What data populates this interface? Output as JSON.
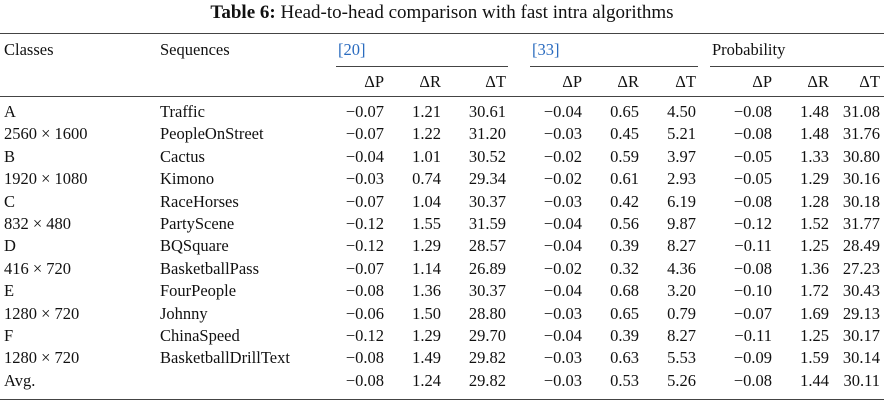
{
  "caption": {
    "label": "Table 6:",
    "text": "Head-to-head comparison with fast intra algorithms"
  },
  "header": {
    "classes": "Classes",
    "sequences": "Sequences",
    "group1": "[20]",
    "group2": "[33]",
    "group3": "Probability",
    "sub": [
      "ΔP",
      "ΔR",
      "ΔT",
      "ΔP",
      "ΔR",
      "ΔT",
      "ΔP",
      "ΔR",
      "ΔT"
    ]
  },
  "rows": [
    {
      "cls": "A",
      "seq": "Traffic",
      "v": [
        "−0.07",
        "1.21",
        "30.61",
        "−0.04",
        "0.65",
        "4.50",
        "−0.08",
        "1.48",
        "31.08"
      ]
    },
    {
      "cls": "2560 × 1600",
      "seq": "PeopleOnStreet",
      "v": [
        "−0.07",
        "1.22",
        "31.20",
        "−0.03",
        "0.45",
        "5.21",
        "−0.08",
        "1.48",
        "31.76"
      ]
    },
    {
      "cls": "B",
      "seq": "Cactus",
      "v": [
        "−0.04",
        "1.01",
        "30.52",
        "−0.02",
        "0.59",
        "3.97",
        "−0.05",
        "1.33",
        "30.80"
      ]
    },
    {
      "cls": "1920 × 1080",
      "seq": "Kimono",
      "v": [
        "−0.03",
        "0.74",
        "29.34",
        "−0.02",
        "0.61",
        "2.93",
        "−0.05",
        "1.29",
        "30.16"
      ]
    },
    {
      "cls": "C",
      "seq": "RaceHorses",
      "v": [
        "−0.07",
        "1.04",
        "30.37",
        "−0.03",
        "0.42",
        "6.19",
        "−0.08",
        "1.28",
        "30.18"
      ]
    },
    {
      "cls": "832 × 480",
      "seq": "PartyScene",
      "v": [
        "−0.12",
        "1.55",
        "31.59",
        "−0.04",
        "0.56",
        "9.87",
        "−0.12",
        "1.52",
        "31.77"
      ]
    },
    {
      "cls": "D",
      "seq": "BQSquare",
      "v": [
        "−0.12",
        "1.29",
        "28.57",
        "−0.04",
        "0.39",
        "8.27",
        "−0.11",
        "1.25",
        "28.49"
      ]
    },
    {
      "cls": "416 × 720",
      "seq": "BasketballPass",
      "v": [
        "−0.07",
        "1.14",
        "26.89",
        "−0.02",
        "0.32",
        "4.36",
        "−0.08",
        "1.36",
        "27.23"
      ]
    },
    {
      "cls": "E",
      "seq": "FourPeople",
      "v": [
        "−0.08",
        "1.36",
        "30.37",
        "−0.04",
        "0.68",
        "3.20",
        "−0.10",
        "1.72",
        "30.43"
      ]
    },
    {
      "cls": "1280 × 720",
      "seq": "Johnny",
      "v": [
        "−0.06",
        "1.50",
        "28.80",
        "−0.03",
        "0.65",
        "0.79",
        "−0.07",
        "1.69",
        "29.13"
      ]
    },
    {
      "cls": "F",
      "seq": "ChinaSpeed",
      "v": [
        "−0.12",
        "1.29",
        "29.70",
        "−0.04",
        "0.39",
        "8.27",
        "−0.11",
        "1.25",
        "30.17"
      ]
    },
    {
      "cls": "1280 × 720",
      "seq": "BasketballDrillText",
      "v": [
        "−0.08",
        "1.49",
        "29.82",
        "−0.03",
        "0.63",
        "5.53",
        "−0.09",
        "1.59",
        "30.14"
      ]
    },
    {
      "cls": "Avg.",
      "seq": "",
      "v": [
        "−0.08",
        "1.24",
        "29.82",
        "−0.03",
        "0.53",
        "5.26",
        "−0.08",
        "1.44",
        "30.11"
      ]
    }
  ]
}
